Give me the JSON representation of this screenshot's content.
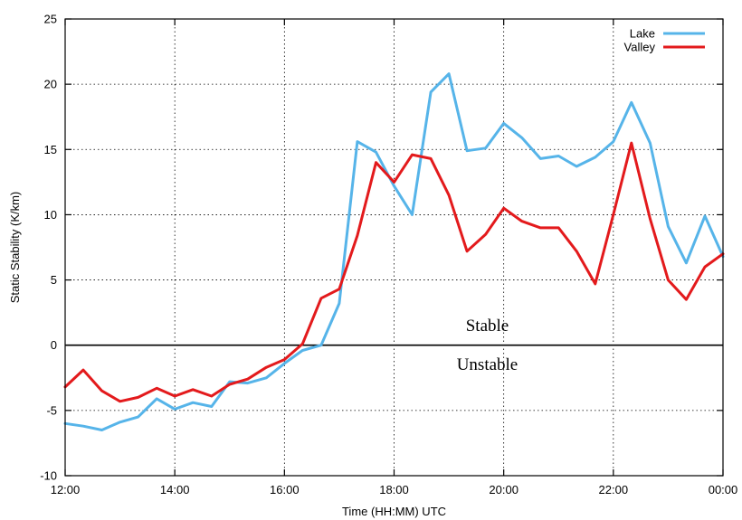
{
  "chart_data": {
    "type": "line",
    "title": "",
    "xlabel": "Time (HH:MM) UTC",
    "ylabel": "Static Stability (K/km)",
    "xlim": [
      12,
      24
    ],
    "ylim": [
      -10,
      25
    ],
    "x_ticks": [
      {
        "value": 12,
        "label": "12:00"
      },
      {
        "value": 14,
        "label": "14:00"
      },
      {
        "value": 16,
        "label": "16:00"
      },
      {
        "value": 18,
        "label": "18:00"
      },
      {
        "value": 20,
        "label": "20:00"
      },
      {
        "value": 22,
        "label": "22:00"
      },
      {
        "value": 24,
        "label": "00:00"
      }
    ],
    "y_ticks": [
      -10,
      -5,
      0,
      5,
      10,
      15,
      20,
      25
    ],
    "grid": true,
    "legend_position": "top-right",
    "zero_line": true,
    "annotations": [
      {
        "text": "Stable",
        "x": 19.7,
        "y": 1.1
      },
      {
        "text": "Unstable",
        "x": 19.7,
        "y": -1.9
      }
    ],
    "series": [
      {
        "name": "Lake",
        "color": "#56b4e9",
        "x": [
          12.0,
          12.33,
          12.67,
          13.0,
          13.33,
          13.67,
          14.0,
          14.33,
          14.67,
          15.0,
          15.33,
          15.67,
          16.0,
          16.33,
          16.67,
          17.0,
          17.33,
          17.67,
          18.0,
          18.33,
          18.67,
          19.0,
          19.33,
          19.67,
          20.0,
          20.33,
          20.67,
          21.0,
          21.33,
          21.67,
          22.0,
          22.33,
          22.67,
          23.0,
          23.33,
          23.67,
          24.0
        ],
        "values": [
          -6.0,
          -6.2,
          -6.5,
          -5.9,
          -5.5,
          -4.1,
          -4.9,
          -4.4,
          -4.7,
          -2.8,
          -2.9,
          -2.5,
          -1.4,
          -0.4,
          0.0,
          3.2,
          15.6,
          14.8,
          12.2,
          10.0,
          19.4,
          20.8,
          14.9,
          15.1,
          17.0,
          15.9,
          14.3,
          14.5,
          13.7,
          14.4,
          15.6,
          18.6,
          15.5,
          9.1,
          6.3,
          9.9,
          6.8
        ]
      },
      {
        "name": "Valley",
        "color": "#e31a1c",
        "x": [
          12.0,
          12.33,
          12.67,
          13.0,
          13.33,
          13.67,
          14.0,
          14.33,
          14.67,
          15.0,
          15.33,
          15.67,
          16.0,
          16.33,
          16.67,
          17.0,
          17.33,
          17.67,
          18.0,
          18.33,
          18.67,
          19.0,
          19.33,
          19.67,
          20.0,
          20.33,
          20.67,
          21.0,
          21.33,
          21.67,
          22.0,
          22.33,
          22.67,
          23.0,
          23.33,
          23.67,
          24.0
        ],
        "values": [
          -3.2,
          -1.9,
          -3.5,
          -4.3,
          -4.0,
          -3.3,
          -3.9,
          -3.4,
          -3.9,
          -3.0,
          -2.6,
          -1.7,
          -1.1,
          0.1,
          3.6,
          4.3,
          8.4,
          14.0,
          12.5,
          14.6,
          14.3,
          11.5,
          7.2,
          8.5,
          10.5,
          9.5,
          9.0,
          9.0,
          7.2,
          4.7,
          10.0,
          15.5,
          9.7,
          5.0,
          3.5,
          6.0,
          7.0
        ]
      }
    ]
  }
}
